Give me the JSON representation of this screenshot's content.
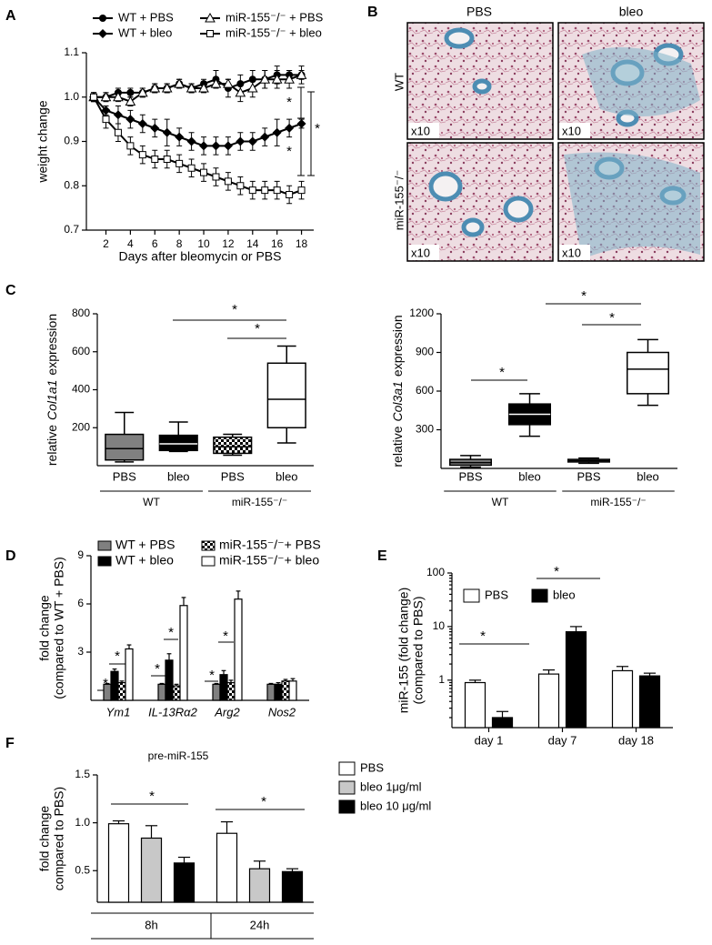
{
  "chart_data": [
    {
      "type": "line",
      "panel": "A",
      "xlabel": "Days after bleomycin or PBS",
      "ylabel": "weight change",
      "x": [
        1,
        2,
        3,
        4,
        5,
        6,
        7,
        8,
        9,
        10,
        11,
        12,
        13,
        14,
        15,
        16,
        17,
        18
      ],
      "xlim": [
        0.4,
        19
      ],
      "xticks": [
        2,
        4,
        6,
        8,
        10,
        12,
        14,
        16,
        18
      ],
      "ylim": [
        0.7,
        1.1
      ],
      "yticks": [
        0.7,
        0.8,
        0.9,
        {
          "value": 1,
          "label": "1.0"
        },
        1.1
      ],
      "series": [
        {
          "name": "WT + PBS",
          "color": "#000000",
          "marker": "circle",
          "values": [
            1.0,
            1.0,
            1.01,
            1.01,
            1.01,
            1.02,
            1.02,
            1.03,
            1.02,
            1.03,
            1.04,
            1.02,
            1.03,
            1.04,
            1.04,
            1.05,
            1.05,
            1.05
          ],
          "errors": [
            0.01,
            0.01,
            0.01,
            0.01,
            0.01,
            0.01,
            0.01,
            0.01,
            0.01,
            0.01,
            0.02,
            0.02,
            0.02,
            0.02,
            0.02,
            0.02,
            0.01,
            0.01
          ]
        },
        {
          "name": "WT + bleo",
          "color": "#000000",
          "marker": "diamond",
          "values": [
            1.0,
            0.97,
            0.96,
            0.95,
            0.94,
            0.93,
            0.92,
            0.91,
            0.9,
            0.89,
            0.89,
            0.89,
            0.9,
            0.9,
            0.91,
            0.92,
            0.93,
            0.94
          ],
          "errors": [
            0.01,
            0.01,
            0.02,
            0.02,
            0.02,
            0.02,
            0.03,
            0.02,
            0.02,
            0.02,
            0.02,
            0.02,
            0.02,
            0.02,
            0.02,
            0.03,
            0.02,
            0.01
          ]
        },
        {
          "name": "miR-155⁻/⁻ + PBS",
          "color": "#000000",
          "marker": "triangle-open",
          "values": [
            1.0,
            1.0,
            1.0,
            0.99,
            1.01,
            1.02,
            1.02,
            1.03,
            1.02,
            1.02,
            1.03,
            1.03,
            1.01,
            1.02,
            1.04,
            1.04,
            1.04,
            1.05
          ],
          "errors": [
            0.01,
            0.01,
            0.01,
            0.01,
            0.01,
            0.01,
            0.01,
            0.01,
            0.01,
            0.01,
            0.01,
            0.01,
            0.02,
            0.02,
            0.02,
            0.02,
            0.02,
            0.02
          ]
        },
        {
          "name": "miR-155⁻/⁻ + bleo",
          "color": "#000000",
          "marker": "square-open",
          "values": [
            1.0,
            0.95,
            0.92,
            0.89,
            0.87,
            0.86,
            0.86,
            0.85,
            0.84,
            0.83,
            0.82,
            0.81,
            0.8,
            0.79,
            0.79,
            0.79,
            0.78,
            0.79
          ],
          "errors": [
            0.01,
            0.02,
            0.02,
            0.02,
            0.02,
            0.02,
            0.02,
            0.02,
            0.02,
            0.02,
            0.02,
            0.02,
            0.02,
            0.02,
            0.02,
            0.02,
            0.02,
            0.02
          ]
        }
      ],
      "significance": [
        "*",
        "*",
        "*"
      ]
    },
    {
      "type": "box",
      "panel": "C",
      "ylabel_parts": [
        "relative",
        "Col1a1",
        "expression"
      ],
      "categories": [
        "PBS",
        "bleo",
        "PBS",
        "bleo"
      ],
      "groups": [
        "WT",
        "miR-155⁻/⁻"
      ],
      "colors": [
        "#808080",
        "#000000",
        "#ffffff",
        "#ffffff"
      ],
      "checkered": [
        false,
        false,
        true,
        false
      ],
      "boxes": [
        {
          "min": 20,
          "q1": 30,
          "median": 90,
          "q3": 165,
          "max": 280
        },
        {
          "min": 75,
          "q1": 80,
          "median": 115,
          "q3": 160,
          "max": 230
        },
        {
          "min": 55,
          "q1": 65,
          "median": 100,
          "q3": 150,
          "max": 165
        },
        {
          "min": 120,
          "q1": 200,
          "median": 350,
          "q3": 540,
          "max": 630
        }
      ],
      "ylim": [
        0,
        800
      ],
      "yticks": [
        200,
        400,
        600,
        800
      ],
      "significance": [
        "*",
        "*"
      ]
    },
    {
      "type": "box",
      "ylabel_parts": [
        "relative",
        "Col3a1",
        "expression"
      ],
      "categories": [
        "PBS",
        "bleo",
        "PBS",
        "bleo"
      ],
      "groups": [
        "WT",
        "miR-155⁻/⁻"
      ],
      "colors": [
        "#808080",
        "#000000",
        "#808080",
        "#ffffff"
      ],
      "checkered": [
        false,
        false,
        false,
        false
      ],
      "boxes": [
        {
          "min": 10,
          "q1": 25,
          "median": 45,
          "q3": 70,
          "max": 100
        },
        {
          "min": 250,
          "q1": 340,
          "median": 420,
          "q3": 500,
          "max": 580
        },
        {
          "min": 40,
          "q1": 50,
          "median": 60,
          "q3": 70,
          "max": 80
        },
        {
          "min": 490,
          "q1": 580,
          "median": 770,
          "q3": 900,
          "max": 1000
        }
      ],
      "ylim": [
        0,
        1200
      ],
      "yticks": [
        300,
        600,
        900,
        1200
      ],
      "significance": [
        "*",
        "*",
        "*"
      ]
    },
    {
      "type": "grouped-bar",
      "panel": "D",
      "ylabel": [
        "fold change",
        "(compared to WT + PBS)"
      ],
      "categories": [
        "Ym1",
        "IL-13Rα2",
        "Arg2",
        "Nos2"
      ],
      "italic_categories": true,
      "series": [
        {
          "name": "WT + PBS",
          "color": "#808080",
          "checkered": false,
          "values": [
            1,
            1,
            1,
            1
          ],
          "errors": [
            0.05,
            0.05,
            0.05,
            0.05
          ]
        },
        {
          "name": "WT + bleo",
          "color": "#000000",
          "checkered": false,
          "values": [
            1.8,
            2.5,
            1.6,
            1.0
          ],
          "errors": [
            0.15,
            0.4,
            0.25,
            0.1
          ]
        },
        {
          "name": "miR-155⁻/⁻+ PBS",
          "color": "#ffffff",
          "checkered": true,
          "values": [
            1.1,
            0.9,
            1.1,
            1.2
          ],
          "errors": [
            0.1,
            0.1,
            0.15,
            0.1
          ]
        },
        {
          "name": "miR-155⁻/⁻+ bleo",
          "color": "#ffffff",
          "checkered": false,
          "values": [
            3.2,
            5.9,
            6.3,
            1.2
          ],
          "errors": [
            0.25,
            0.5,
            0.5,
            0.15
          ]
        }
      ],
      "ylim": [
        0,
        9
      ],
      "yticks": [
        3,
        6,
        9
      ],
      "significance": [
        "*",
        "*",
        "*",
        "*",
        "*",
        "*"
      ]
    },
    {
      "type": "grouped-bar",
      "panel": "E",
      "log_scale": true,
      "ylabel": [
        "miR-155 (fold change)",
        "(compared to PBS)"
      ],
      "categories": [
        "day 1",
        "day 7",
        "day 18"
      ],
      "series": [
        {
          "name": "PBS",
          "color": "#ffffff",
          "checkered": false,
          "values": [
            0.9,
            1.3,
            1.5
          ],
          "errors": [
            0.1,
            0.25,
            0.3
          ]
        },
        {
          "name": "bleo",
          "color": "#000000",
          "checkered": false,
          "values": [
            0.2,
            8,
            1.2
          ],
          "errors": [
            0.06,
            2,
            0.15
          ]
        }
      ],
      "ylim": [
        0.13,
        100
      ],
      "yticks": [
        1,
        10,
        100
      ],
      "significance": [
        "*",
        "*"
      ]
    },
    {
      "type": "grouped-bar",
      "panel": "F",
      "title": "pre-miR-155",
      "ylabel": [
        "fold change",
        "compared to PBS)"
      ],
      "categories": [
        "8h",
        "24h"
      ],
      "series": [
        {
          "name": "PBS",
          "color": "#ffffff",
          "checkered": false,
          "values": [
            0.99,
            0.89
          ],
          "errors": [
            0.03,
            0.12
          ]
        },
        {
          "name": "bleo 1μg/ml",
          "color": "#c8c8c8",
          "checkered": false,
          "values": [
            0.84,
            0.52
          ],
          "errors": [
            0.13,
            0.08
          ]
        },
        {
          "name": "bleo 10 μg/ml",
          "color": "#000000",
          "checkered": false,
          "values": [
            0.58,
            0.49
          ],
          "errors": [
            0.06,
            0.03
          ]
        }
      ],
      "ylim": [
        0.17,
        1.5
      ],
      "yticks": [
        {
          "value": 0.5,
          "label": "0.5"
        },
        {
          "value": 1,
          "label": "1.0"
        },
        1.5
      ],
      "significance": [
        "*",
        "*"
      ]
    }
  ],
  "histology": {
    "panel": "B",
    "columns": [
      "PBS",
      "bleo"
    ],
    "rows": [
      "WT",
      "miR-155⁻/⁻"
    ],
    "magnifications": [
      "x10",
      "x10",
      "x10",
      "x10"
    ]
  }
}
